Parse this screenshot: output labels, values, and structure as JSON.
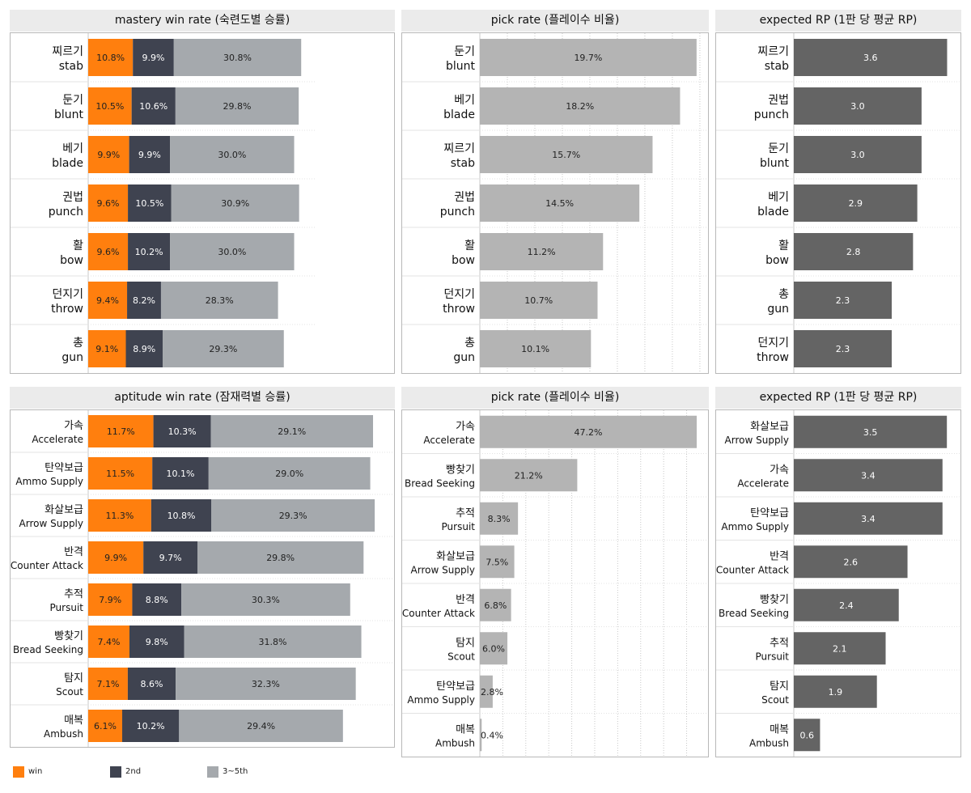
{
  "legend": {
    "win": "win",
    "second": "2nd",
    "rest": "3~5th"
  },
  "colors": {
    "win": "#ff7f0e",
    "second": "#3f4350",
    "rest": "#a5a9ad",
    "pick": "#b4b4b4",
    "rp": "#646464"
  },
  "chart_data": [
    {
      "id": "mastery_win",
      "type": "bar",
      "stacked": true,
      "orientation": "horizontal",
      "title": "mastery win rate (숙련도별 승률)",
      "categories_ko": [
        "찌르기",
        "둔기",
        "베기",
        "권법",
        "활",
        "던지기",
        "총"
      ],
      "categories": [
        "stab",
        "blunt",
        "blade",
        "punch",
        "bow",
        "throw",
        "gun"
      ],
      "series": [
        {
          "name": "win",
          "values": [
            10.8,
            10.5,
            9.9,
            9.6,
            9.6,
            9.4,
            9.1
          ]
        },
        {
          "name": "2nd",
          "values": [
            9.9,
            10.6,
            9.9,
            10.5,
            10.2,
            8.2,
            8.9
          ]
        },
        {
          "name": "3~5th",
          "values": [
            30.8,
            29.8,
            30.0,
            30.9,
            30.0,
            28.3,
            29.3
          ]
        }
      ],
      "xlim": [
        0,
        54
      ],
      "value_suffix": "%"
    },
    {
      "id": "mastery_pick",
      "type": "bar",
      "orientation": "horizontal",
      "title": "pick rate (플레이수 비율)",
      "categories_ko": [
        "둔기",
        "베기",
        "찌르기",
        "권법",
        "활",
        "던지기",
        "총"
      ],
      "categories": [
        "blunt",
        "blade",
        "stab",
        "punch",
        "bow",
        "throw",
        "gun"
      ],
      "values": [
        19.7,
        18.2,
        15.7,
        14.5,
        11.2,
        10.7,
        10.1
      ],
      "xlim": [
        0,
        20.3
      ],
      "grid": true,
      "value_suffix": "%"
    },
    {
      "id": "mastery_rp",
      "type": "bar",
      "orientation": "horizontal",
      "title": "expected RP (1판 당 평균 RP)",
      "categories_ko": [
        "찌르기",
        "권법",
        "둔기",
        "베기",
        "활",
        "총",
        "던지기"
      ],
      "categories": [
        "stab",
        "punch",
        "blunt",
        "blade",
        "bow",
        "gun",
        "throw"
      ],
      "values": [
        3.6,
        3.0,
        3.0,
        2.9,
        2.8,
        2.3,
        2.3
      ],
      "xlim": [
        0,
        3.8
      ],
      "value_format": "fixed1"
    },
    {
      "id": "aptitude_win",
      "type": "bar",
      "stacked": true,
      "orientation": "horizontal",
      "title": "aptitude win rate (잠재력별 승률)",
      "categories_ko": [
        "가속",
        "탄약보급",
        "화살보급",
        "반격",
        "추적",
        "빵찾기",
        "탐지",
        "매복"
      ],
      "categories": [
        "Accelerate",
        "Ammo Supply",
        "Arrow Supply",
        "Counter Attack",
        "Pursuit",
        "Bread Seeking",
        "Scout",
        "Ambush"
      ],
      "series": [
        {
          "name": "win",
          "values": [
            11.7,
            11.5,
            11.3,
            9.9,
            7.9,
            7.4,
            7.1,
            6.1
          ]
        },
        {
          "name": "2nd",
          "values": [
            10.3,
            10.1,
            10.8,
            9.7,
            8.8,
            9.8,
            8.6,
            10.2
          ]
        },
        {
          "name": "3~5th",
          "values": [
            29.1,
            29.0,
            29.3,
            29.8,
            30.3,
            31.8,
            32.3,
            29.4
          ]
        }
      ],
      "xlim": [
        0,
        54
      ],
      "value_suffix": "%"
    },
    {
      "id": "aptitude_pick",
      "type": "bar",
      "orientation": "horizontal",
      "title": "pick rate (플레이수 비율)",
      "categories_ko": [
        "가속",
        "빵찾기",
        "추적",
        "화살보급",
        "반격",
        "탐지",
        "탄약보급",
        "매복"
      ],
      "categories": [
        "Accelerate",
        "Bread Seeking",
        "Pursuit",
        "Arrow Supply",
        "Counter Attack",
        "Scout",
        "Ammo Supply",
        "Ambush"
      ],
      "values": [
        47.2,
        21.2,
        8.3,
        7.5,
        6.8,
        6.0,
        2.8,
        0.4
      ],
      "xlim": [
        0,
        48.6
      ],
      "grid": true,
      "value_suffix": "%"
    },
    {
      "id": "aptitude_rp",
      "type": "bar",
      "orientation": "horizontal",
      "title": "expected RP (1판 당 평균 RP)",
      "categories_ko": [
        "화살보급",
        "가속",
        "탄약보급",
        "반격",
        "빵찾기",
        "추적",
        "탐지",
        "매복"
      ],
      "categories": [
        "Arrow Supply",
        "Accelerate",
        "Ammo Supply",
        "Counter Attack",
        "Bread Seeking",
        "Pursuit",
        "Scout",
        "Ambush"
      ],
      "values": [
        3.5,
        3.4,
        3.4,
        2.6,
        2.4,
        2.1,
        1.9,
        0.6
      ],
      "xlim": [
        0,
        3.7
      ],
      "value_format": "fixed1"
    }
  ]
}
